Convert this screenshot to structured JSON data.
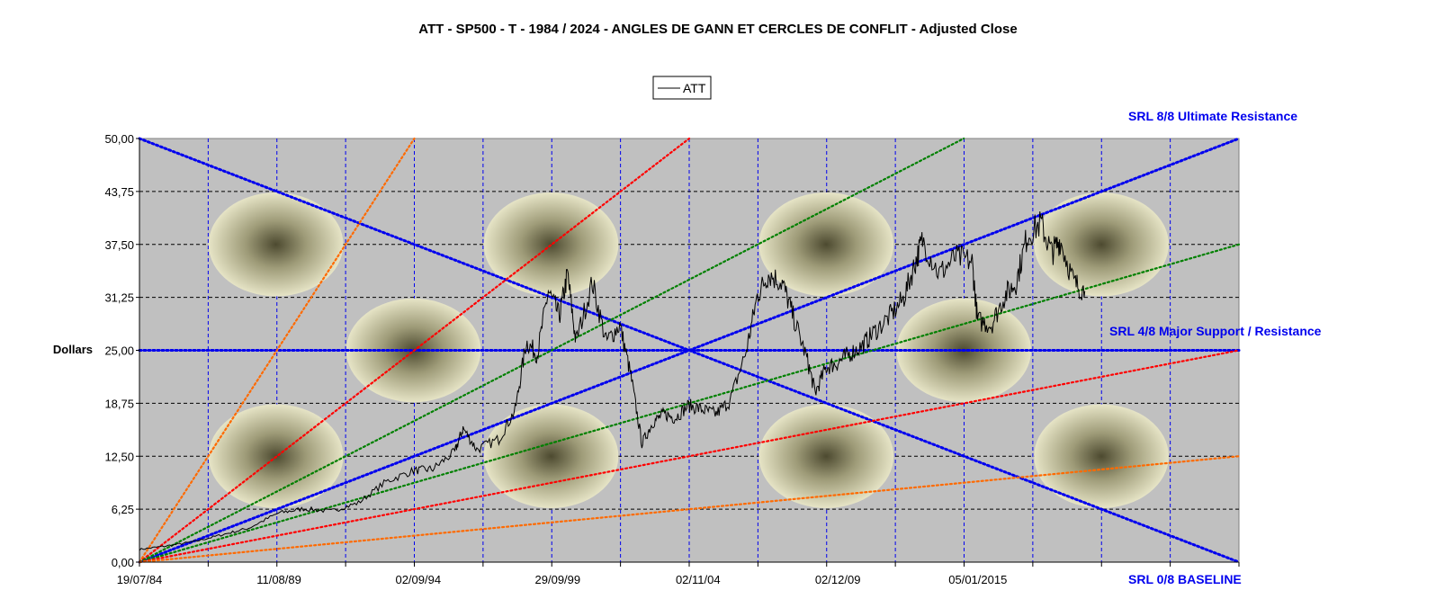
{
  "chart_data": {
    "type": "line",
    "title": "ATT - SP500 - T -  1984 / 2024  - ANGLES DE GANN ET CERCLES DE CONFLIT - Adjusted Close",
    "ylabel": "Dollars",
    "ylim": [
      0,
      50
    ],
    "y_ticks": [
      "0,00",
      "6,25",
      "12,50",
      "18,75",
      "25,00",
      "31,25",
      "37,50",
      "43,75",
      "50,00"
    ],
    "x_range_years": [
      1984.54,
      2024.5
    ],
    "x_ticks": [
      {
        "label": "19/07/84",
        "year": 1984.54
      },
      {
        "label": "11/08/89",
        "year": 1989.61
      },
      {
        "label": "02/09/94",
        "year": 1994.67
      },
      {
        "label": "29/09/99",
        "year": 1999.74
      },
      {
        "label": "02/11/04",
        "year": 2004.84
      },
      {
        "label": "02/12/09",
        "year": 2009.92
      },
      {
        "label": "05/01/2015",
        "year": 2015.01
      }
    ],
    "grid": true,
    "legend": {
      "position": "top-center",
      "entries": [
        "ATT"
      ]
    },
    "series": [
      {
        "name": "ATT",
        "color": "#000000",
        "points": [
          [
            1984.54,
            1.5
          ],
          [
            1985.5,
            1.9
          ],
          [
            1986.5,
            2.4
          ],
          [
            1987.5,
            3.2
          ],
          [
            1988.5,
            4.0
          ],
          [
            1989.6,
            5.8
          ],
          [
            1990.5,
            6.3
          ],
          [
            1991.5,
            6.0
          ],
          [
            1992.5,
            7.0
          ],
          [
            1993.5,
            9.5
          ],
          [
            1994.5,
            10.8
          ],
          [
            1995.2,
            11.0
          ],
          [
            1996.0,
            13.0
          ],
          [
            1996.3,
            15.8
          ],
          [
            1996.8,
            13.3
          ],
          [
            1997.6,
            14.5
          ],
          [
            1998.2,
            18.0
          ],
          [
            1998.6,
            26.0
          ],
          [
            1999.0,
            24.5
          ],
          [
            1999.4,
            32.0
          ],
          [
            1999.8,
            29.0
          ],
          [
            2000.1,
            34.0
          ],
          [
            2000.4,
            26.0
          ],
          [
            2001.0,
            33.0
          ],
          [
            2001.5,
            26.0
          ],
          [
            2002.0,
            28.0
          ],
          [
            2002.4,
            22.0
          ],
          [
            2002.8,
            14.0
          ],
          [
            2003.2,
            16.5
          ],
          [
            2003.6,
            17.5
          ],
          [
            2004.0,
            17.0
          ],
          [
            2004.5,
            18.5
          ],
          [
            2005.0,
            18.0
          ],
          [
            2005.5,
            17.5
          ],
          [
            2006.0,
            19.0
          ],
          [
            2006.6,
            25.0
          ],
          [
            2007.0,
            31.5
          ],
          [
            2007.4,
            34.0
          ],
          [
            2007.9,
            33.0
          ],
          [
            2008.3,
            29.0
          ],
          [
            2008.8,
            24.0
          ],
          [
            2009.1,
            20.0
          ],
          [
            2009.5,
            23.0
          ],
          [
            2009.9,
            23.5
          ],
          [
            2010.3,
            24.5
          ],
          [
            2010.8,
            25.5
          ],
          [
            2011.2,
            27.0
          ],
          [
            2011.8,
            29.0
          ],
          [
            2012.3,
            31.0
          ],
          [
            2012.7,
            35.0
          ],
          [
            2013.0,
            38.0
          ],
          [
            2013.6,
            34.0
          ],
          [
            2014.2,
            36.0
          ],
          [
            2014.8,
            35.5
          ],
          [
            2015.0,
            28.5
          ],
          [
            2015.5,
            28.0
          ],
          [
            2016.0,
            31.5
          ],
          [
            2016.4,
            33.0
          ],
          [
            2016.8,
            38.5
          ],
          [
            2017.3,
            40.0
          ],
          [
            2017.7,
            36.5
          ],
          [
            2018.0,
            38.0
          ],
          [
            2018.5,
            33.0
          ],
          [
            2018.9,
            32.0
          ]
        ]
      }
    ],
    "srl_labels": [
      {
        "text": "SRL 8/8 Ultimate Resistance",
        "value": 50
      },
      {
        "text": "SRL 4/8 Major Support / Resistance",
        "value": 25
      },
      {
        "text": "SRL 0/8 BASELINE",
        "value": 0
      }
    ],
    "gann_lines": [
      {
        "color": "#0000ee",
        "from": [
          1984.54,
          50
        ],
        "to": [
          2024.5,
          0
        ]
      },
      {
        "color": "#0000ee",
        "from": [
          1984.54,
          0
        ],
        "to": [
          2024.5,
          50
        ]
      },
      {
        "color": "#0000ee",
        "from": [
          1984.54,
          25
        ],
        "to": [
          2024.5,
          25
        ]
      },
      {
        "color": "#ff6a00",
        "from": [
          1984.54,
          0
        ],
        "to": [
          1994.53,
          50
        ]
      },
      {
        "color": "#ff0000",
        "from": [
          1984.54,
          0
        ],
        "to": [
          2004.52,
          50
        ]
      },
      {
        "color": "#008000",
        "from": [
          1984.54,
          0
        ],
        "to": [
          2014.5,
          50
        ]
      },
      {
        "color": "#008000",
        "from": [
          1984.54,
          0
        ],
        "to": [
          2024.5,
          37.5
        ]
      },
      {
        "color": "#ff0000",
        "from": [
          1984.54,
          0
        ],
        "to": [
          2024.5,
          25
        ]
      },
      {
        "color": "#ff6a00",
        "from": [
          1984.54,
          0
        ],
        "to": [
          2024.5,
          12.5
        ]
      }
    ],
    "conflict_circles": [
      [
        1989.5,
        37.5
      ],
      [
        1989.5,
        12.5
      ],
      [
        1994.5,
        25
      ],
      [
        1999.5,
        37.5
      ],
      [
        1999.5,
        12.5
      ],
      [
        2009.5,
        37.5
      ],
      [
        2009.5,
        12.5
      ],
      [
        2014.5,
        25
      ],
      [
        2019.5,
        37.5
      ],
      [
        2019.5,
        12.5
      ]
    ],
    "colors": {
      "plot_bg": "#c0c0c0",
      "grid_v": "#0000ee",
      "grid_h": "#000000",
      "circle_edge": "#e6e4c6",
      "circle_core": "#4d4a30"
    }
  }
}
